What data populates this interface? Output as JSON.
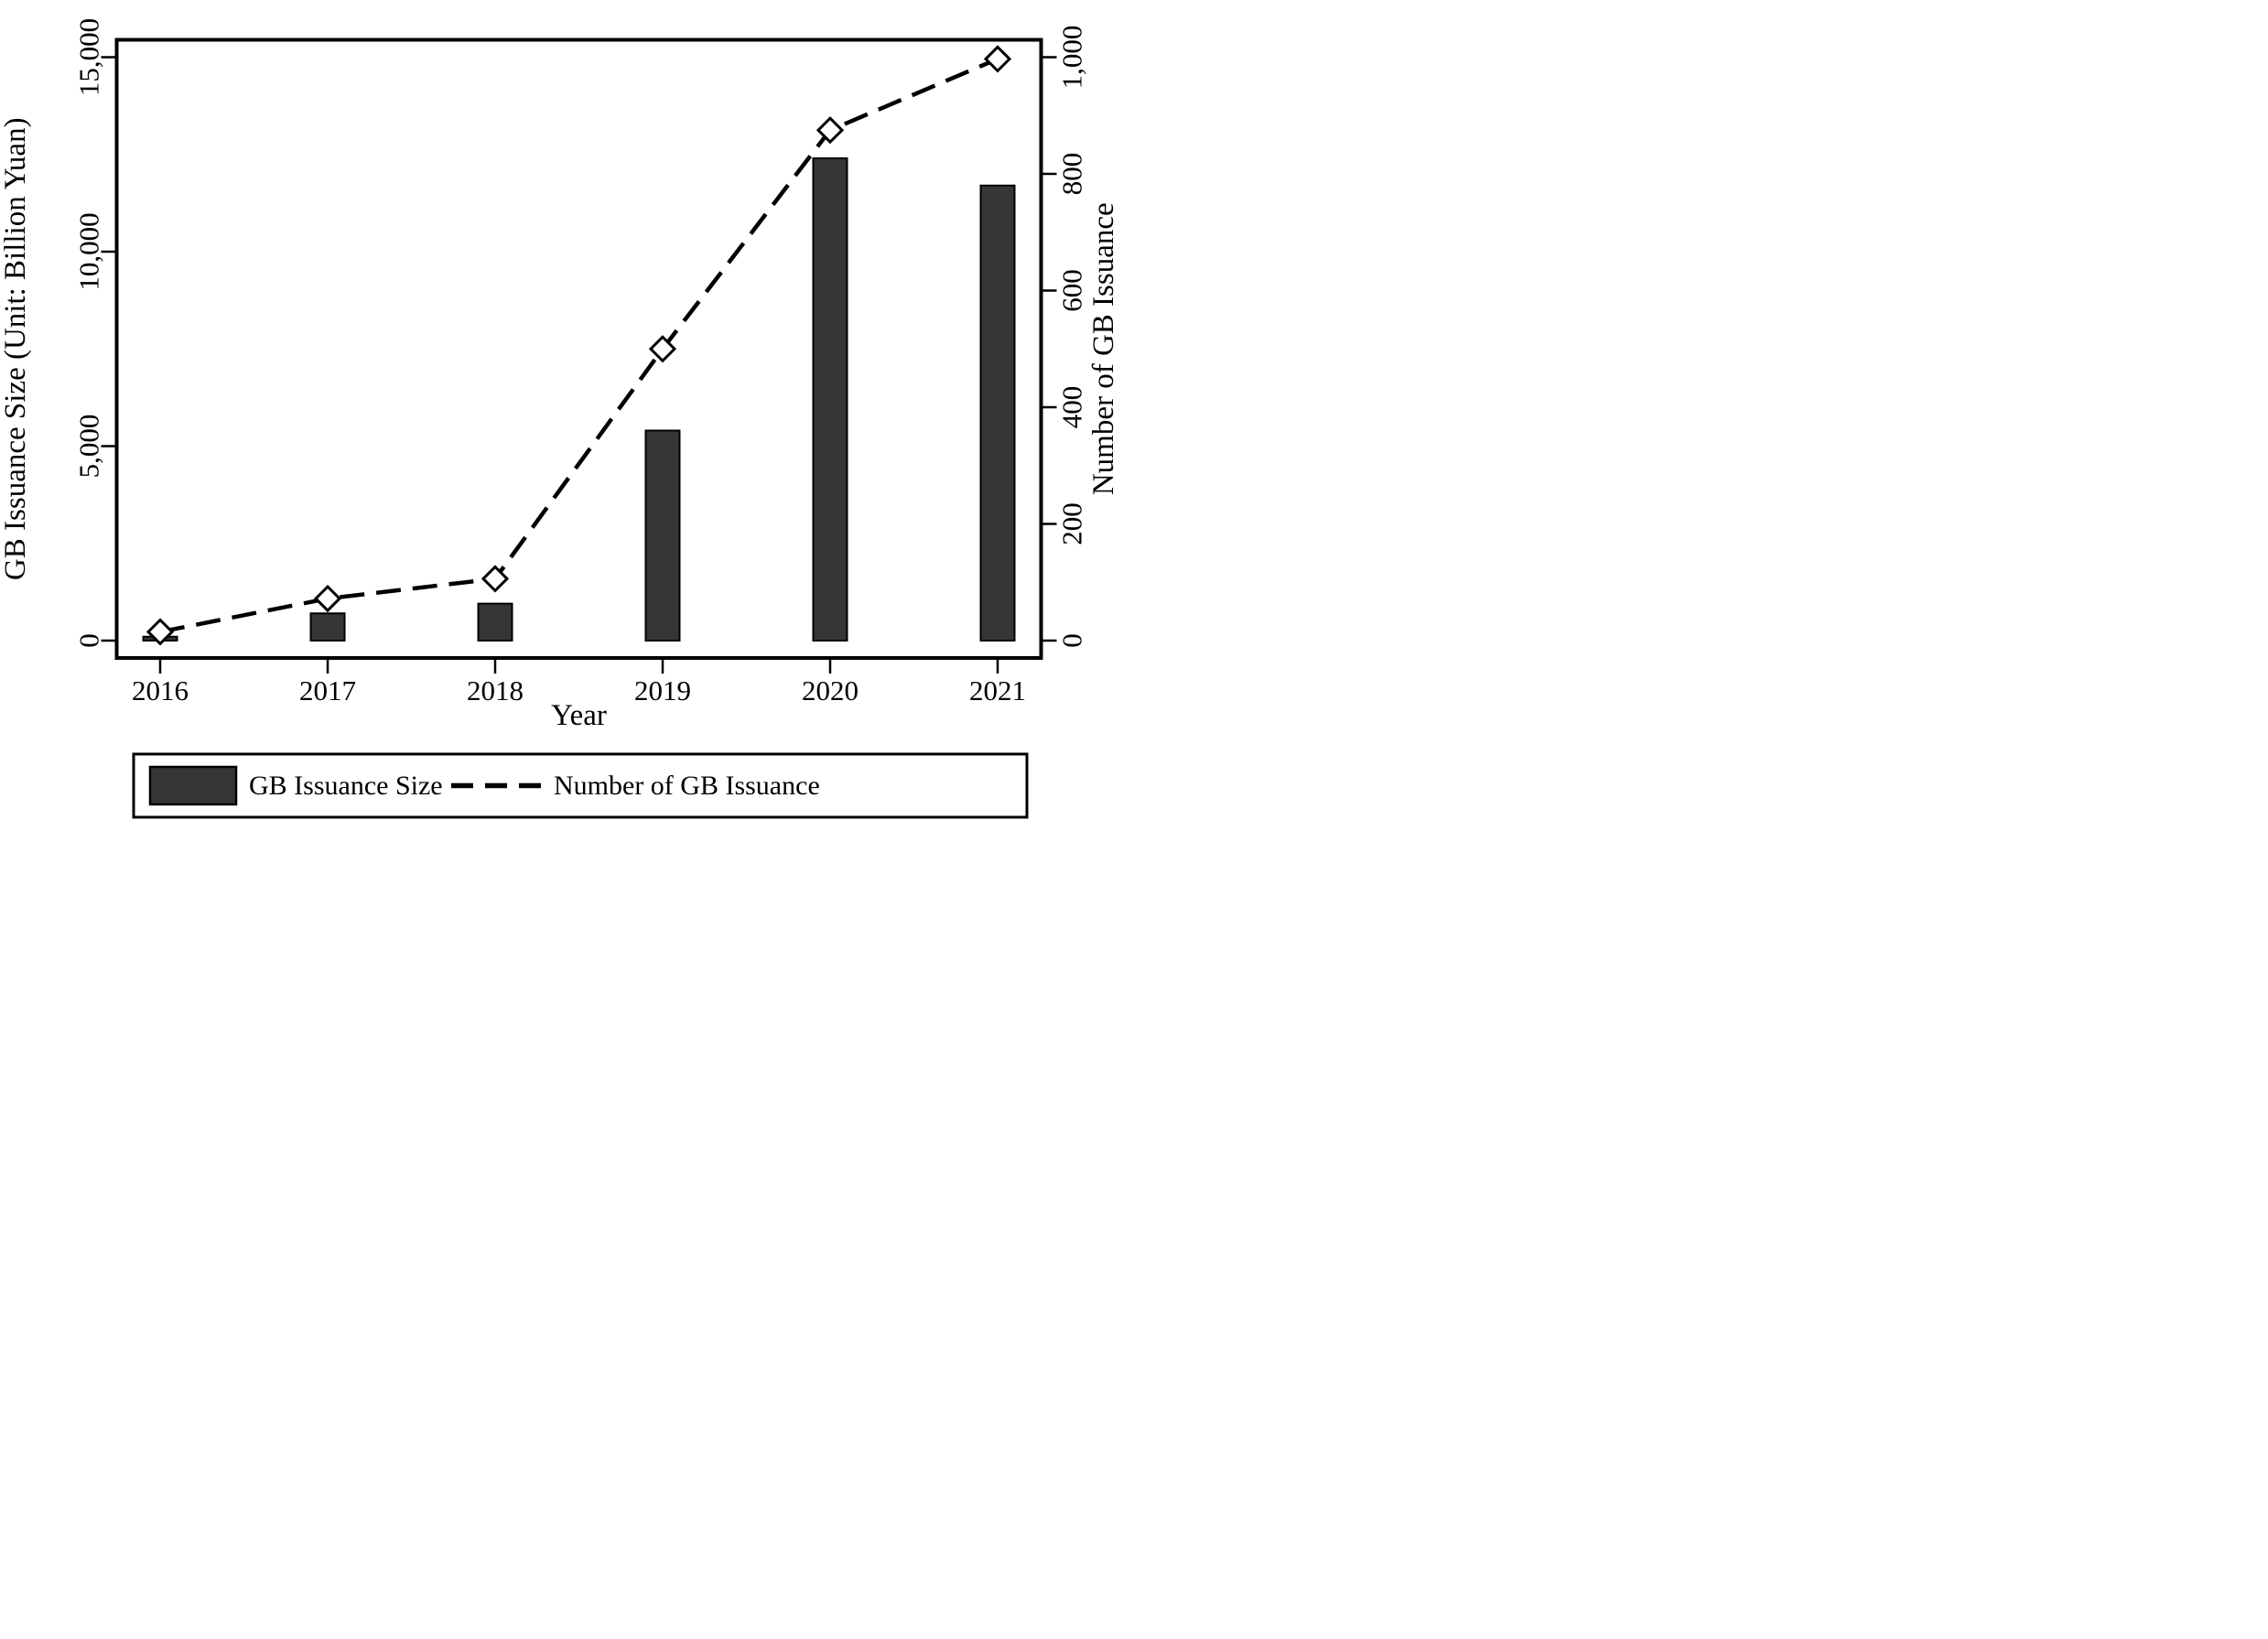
{
  "chart_data": {
    "type": "bar",
    "subtype": "dual-axis-bar-line-combo",
    "title": "",
    "xlabel": "Year",
    "ylabel_left": "GB Issuance Size (Unit: Billion Yuan)",
    "ylabel_right": "Number of GB Issuance",
    "categories": [
      "2016",
      "2017",
      "2018",
      "2019",
      "2020",
      "2021"
    ],
    "series": [
      {
        "name": "GB Issuance Size",
        "type": "bar",
        "axis": "left",
        "unit": "Billion Yuan",
        "values": [
          100,
          700,
          950,
          5400,
          12400,
          11700
        ]
      },
      {
        "name": "Number of GB Issuance",
        "type": "line",
        "line_style": "dashed",
        "marker": "open-diamond",
        "axis": "right",
        "values": [
          15,
          72,
          106,
          500,
          875,
          997
        ]
      }
    ],
    "left_axis": {
      "range": [
        0,
        15450
      ],
      "tick_values": [
        0,
        5000,
        10000,
        15000
      ],
      "tick_labels": [
        "0",
        "5,000",
        "10,000",
        "15,000"
      ],
      "label_rotation": "90deg-ccw"
    },
    "right_axis": {
      "range": [
        0,
        1030
      ],
      "tick_values": [
        0,
        200,
        400,
        600,
        800,
        1000
      ],
      "tick_labels": [
        "0",
        "200",
        "400",
        "600",
        "800",
        "1,000"
      ],
      "label_rotation": "90deg-ccw"
    },
    "grid": false,
    "legend": {
      "position": "bottom",
      "border": true,
      "items": [
        {
          "label": "GB Issuance Size",
          "swatch": "filled-bar"
        },
        {
          "label": "Number of GB Issuance",
          "swatch": "dashed-line"
        }
      ]
    },
    "colors": {
      "bar_fill": "#363636",
      "stroke": "#000000",
      "marker_fill": "#ffffff",
      "background": "#ffffff"
    }
  }
}
